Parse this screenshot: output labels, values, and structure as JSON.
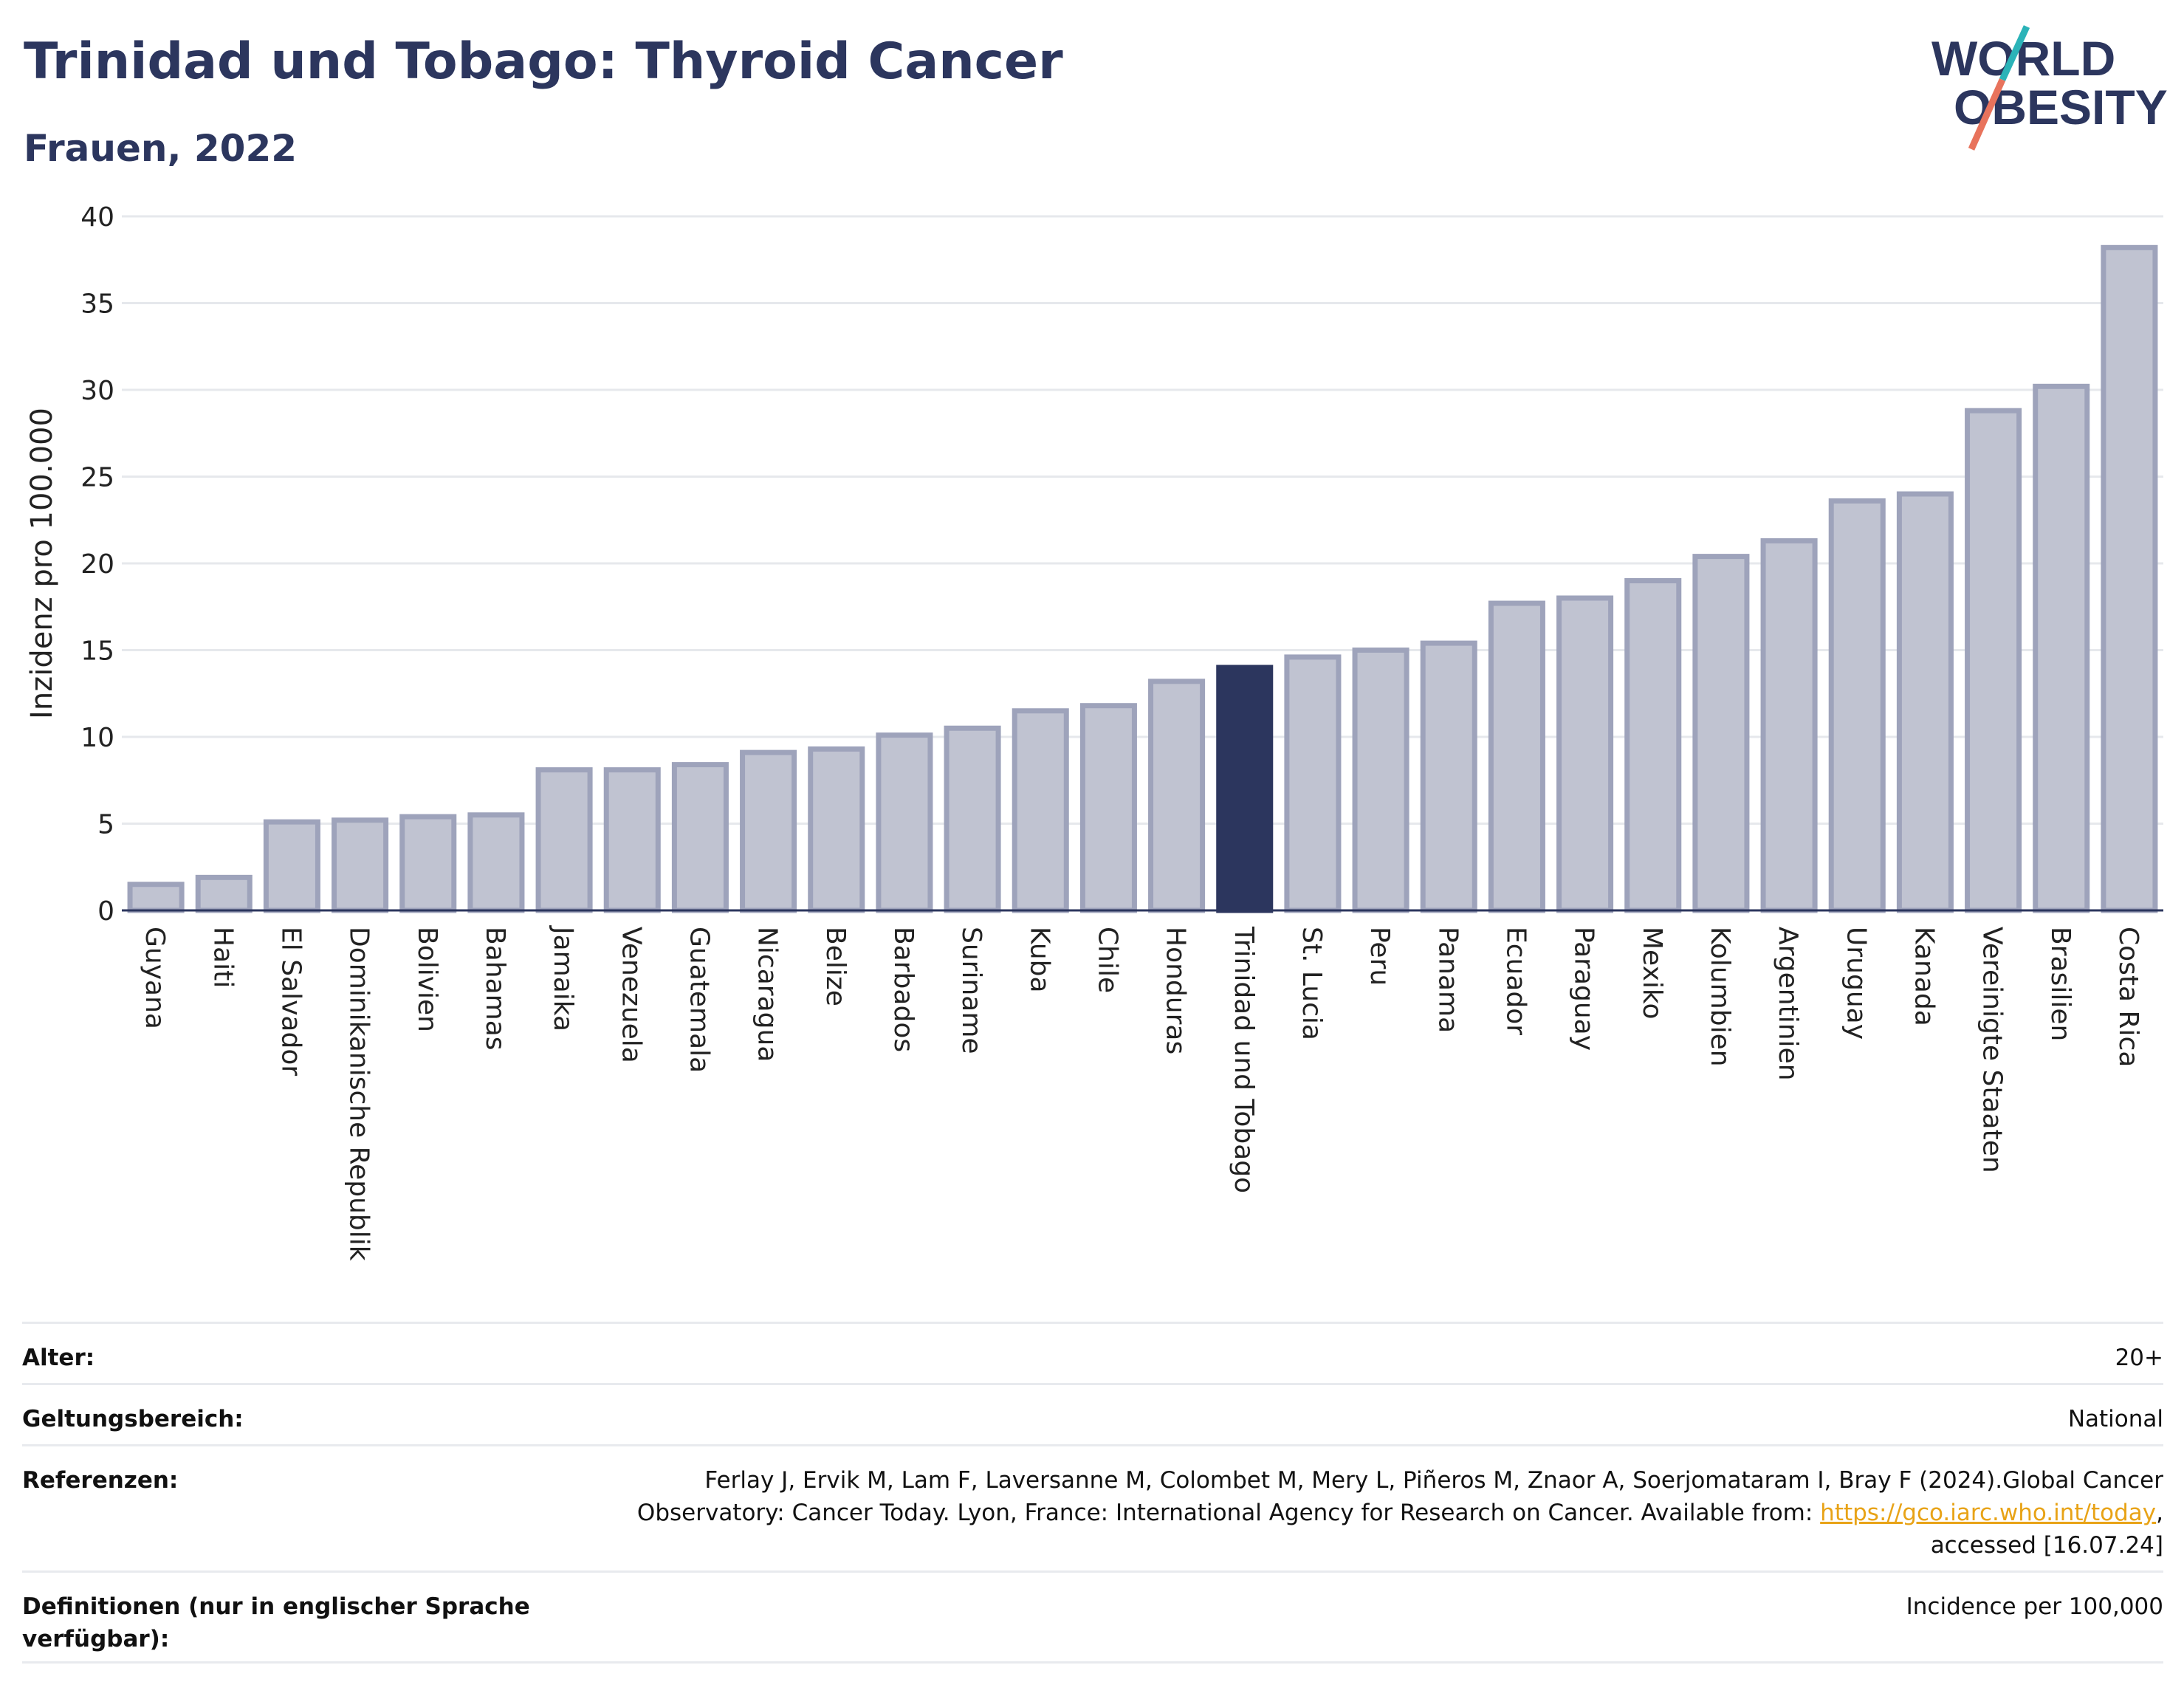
{
  "title": "Trinidad und Tobago: Thyroid Cancer",
  "subtitle": "Frauen, 2022",
  "logo": {
    "line1": "WORLD",
    "line2": "OBESITY"
  },
  "colors": {
    "highlight": "#2c365e",
    "bar_fill": "#c0c3d1",
    "bar_edge": "#9ea3bb",
    "accent_teal": "#2bb3b8",
    "accent_coral": "#e8735c"
  },
  "chart_data": {
    "type": "bar",
    "ylabel": "Inzidenz pro 100.000",
    "ylim": [
      0,
      40
    ],
    "yticks": [
      "0",
      "5",
      "10",
      "15",
      "20",
      "25",
      "30",
      "35",
      "40"
    ],
    "grid": true,
    "highlight_category": "Trinidad und Tobago",
    "categories": [
      "Guyana",
      "Haiti",
      "El Salvador",
      "Dominikanische Republik",
      "Bolivien",
      "Bahamas",
      "Jamaika",
      "Venezuela",
      "Guatemala",
      "Nicaragua",
      "Belize",
      "Barbados",
      "Suriname",
      "Kuba",
      "Chile",
      "Honduras",
      "Trinidad und Tobago",
      "St. Lucia",
      "Peru",
      "Panama",
      "Ecuador",
      "Paraguay",
      "Mexiko",
      "Kolumbien",
      "Argentinien",
      "Uruguay",
      "Kanada",
      "Vereinigte Staaten",
      "Brasilien",
      "Costa Rica"
    ],
    "values": [
      1.5,
      1.9,
      5.1,
      5.2,
      5.4,
      5.5,
      8.1,
      8.1,
      8.4,
      9.1,
      9.3,
      10.1,
      10.5,
      11.5,
      11.8,
      13.2,
      14.0,
      14.6,
      15.0,
      15.4,
      17.7,
      18.0,
      19.0,
      20.4,
      21.3,
      23.6,
      24.0,
      28.8,
      30.2,
      38.2
    ]
  },
  "meta": {
    "age_label": "Alter:",
    "age_value": "20+",
    "scope_label": "Geltungsbereich:",
    "scope_value": "National",
    "ref_label": "Referenzen:",
    "ref_text1": "Ferlay J, Ervik M, Lam F, Laversanne M, Colombet M, Mery L, Piñeros M, Znaor A, Soerjomataram I, Bray F (2024).Global Cancer",
    "ref_text2": "Observatory: Cancer Today. Lyon, France: International Agency for Research on Cancer. Available from: ",
    "ref_link": "https://gco.iarc.who.int/today",
    "ref_text3": "accessed [16.07.24]",
    "def_label": "Definitionen (nur in englischer Sprache verfügbar):",
    "def_value": "Incidence per 100,000"
  }
}
